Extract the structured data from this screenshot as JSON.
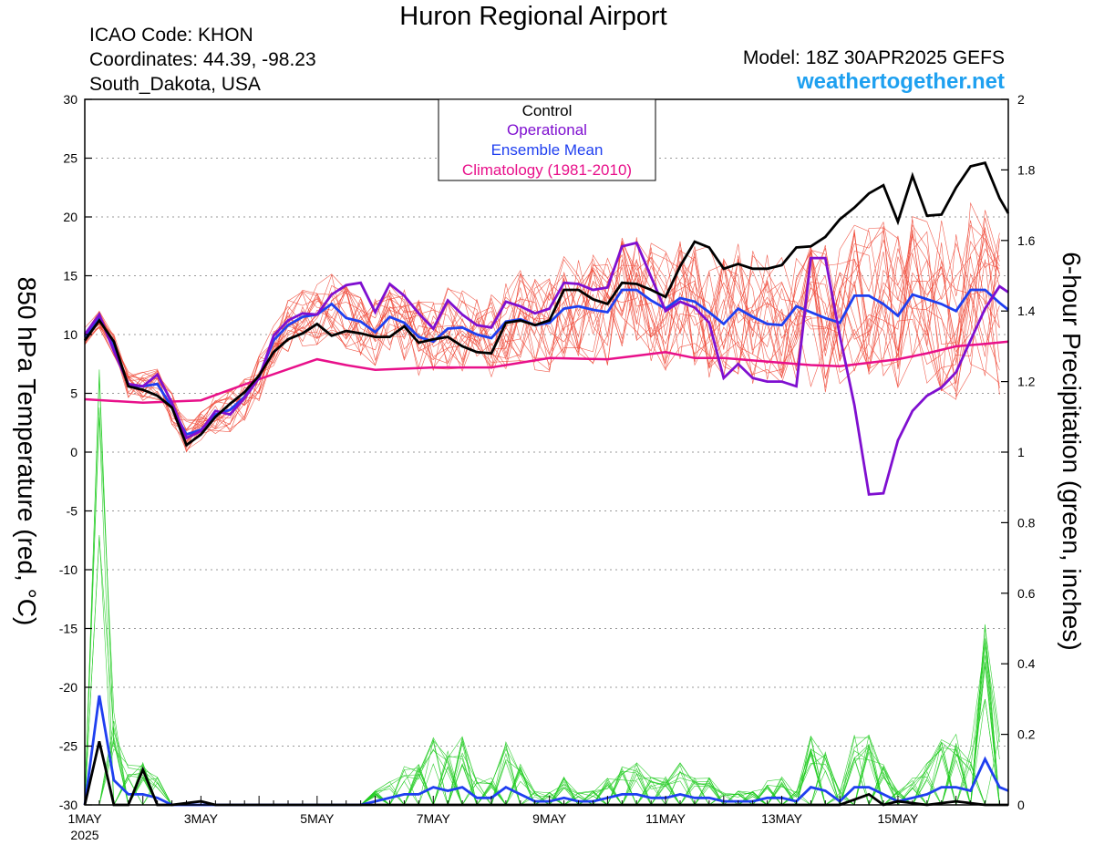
{
  "header": {
    "title": "Huron Regional Airport",
    "icao": "ICAO Code: KHON",
    "coordinates": "Coordinates: 44.39, -98.23",
    "region": "South_Dakota, USA",
    "model": "Model: 18Z 30APR2025 GEFS",
    "site": "weathertogether.net"
  },
  "colors": {
    "control": "#000000",
    "operational": "#7f0fd0",
    "ensemble_mean": "#1f3ff0",
    "climatology": "#e8108a",
    "members_temp": "#f04a3a",
    "members_precip": "#22cc22",
    "site": "#1ea0f0"
  },
  "chart_data": {
    "type": "line",
    "x_unit": "day of May 2025 (fractional, 6-hour steps)",
    "x_range": [
      1,
      16.9
    ],
    "x_ticks": [
      {
        "x": 1,
        "label": "1MAY",
        "sub": "2025"
      },
      {
        "x": 3,
        "label": "3MAY"
      },
      {
        "x": 5,
        "label": "5MAY"
      },
      {
        "x": 7,
        "label": "7MAY"
      },
      {
        "x": 9,
        "label": "9MAY"
      },
      {
        "x": 11,
        "label": "11MAY"
      },
      {
        "x": 13,
        "label": "13MAY"
      },
      {
        "x": 15,
        "label": "15MAY"
      }
    ],
    "y_left": {
      "label": "850 hPa Temperature (red, °C)",
      "range": [
        -30,
        30
      ],
      "ticks": [
        30,
        25,
        20,
        15,
        10,
        5,
        0,
        -5,
        -10,
        -15,
        -20,
        -25,
        -30
      ]
    },
    "y_right": {
      "label": "6-hour Precipitation (green, inches)",
      "range": [
        0,
        2
      ],
      "ticks": [
        "2",
        "1.8",
        "1.6",
        "1.4",
        "1.2",
        "1",
        "0.8",
        "0.6",
        "0.4",
        "0.2",
        "0"
      ]
    },
    "grid": "dotted horizontal",
    "legend": {
      "position": "top-center",
      "entries": [
        {
          "label": "Control",
          "color": "#000000"
        },
        {
          "label": "Operational",
          "color": "#7f0fd0"
        },
        {
          "label": "Ensemble Mean",
          "color": "#1f3ff0"
        },
        {
          "label": "Climatology (1981-2010)",
          "color": "#e8108a"
        }
      ]
    },
    "temperature": {
      "control": [
        [
          1,
          9.5
        ],
        [
          1.25,
          11.2
        ],
        [
          1.5,
          9.4
        ],
        [
          1.75,
          5.6
        ],
        [
          2,
          5.3
        ],
        [
          2.25,
          4.8
        ],
        [
          2.5,
          3.8
        ],
        [
          2.75,
          0.6
        ],
        [
          3,
          1.5
        ],
        [
          3.25,
          3.0
        ],
        [
          3.5,
          4.1
        ],
        [
          3.75,
          5.1
        ],
        [
          4,
          6.5
        ],
        [
          4.25,
          8.5
        ],
        [
          4.5,
          9.6
        ],
        [
          4.75,
          10.1
        ],
        [
          5,
          10.9
        ],
        [
          5.25,
          9.9
        ],
        [
          5.5,
          10.3
        ],
        [
          5.75,
          10.1
        ],
        [
          6,
          9.8
        ],
        [
          6.25,
          9.8
        ],
        [
          6.5,
          10.7
        ],
        [
          6.75,
          9.3
        ],
        [
          7,
          9.6
        ],
        [
          7.25,
          9.8
        ],
        [
          7.5,
          9.0
        ],
        [
          7.75,
          8.5
        ],
        [
          8,
          8.4
        ],
        [
          8.25,
          11.0
        ],
        [
          8.5,
          11.2
        ],
        [
          8.75,
          10.8
        ],
        [
          9,
          11.2
        ],
        [
          9.25,
          13.8
        ],
        [
          9.5,
          13.8
        ],
        [
          9.75,
          13.0
        ],
        [
          10,
          12.6
        ],
        [
          10.25,
          14.4
        ],
        [
          10.5,
          14.3
        ],
        [
          10.75,
          13.8
        ],
        [
          11,
          13.2
        ],
        [
          11.25,
          15.8
        ],
        [
          11.5,
          17.9
        ],
        [
          11.75,
          17.4
        ],
        [
          12,
          15.6
        ],
        [
          12.25,
          16.0
        ],
        [
          12.5,
          15.6
        ],
        [
          12.75,
          15.6
        ],
        [
          13,
          15.9
        ],
        [
          13.25,
          17.4
        ],
        [
          13.5,
          17.5
        ],
        [
          13.75,
          18.3
        ],
        [
          14,
          19.8
        ],
        [
          14.25,
          20.8
        ],
        [
          14.5,
          22.0
        ],
        [
          14.75,
          22.7
        ],
        [
          15,
          19.6
        ],
        [
          15.25,
          23.5
        ],
        [
          15.5,
          20.1
        ],
        [
          15.75,
          20.2
        ],
        [
          16,
          22.5
        ],
        [
          16.25,
          24.3
        ],
        [
          16.5,
          24.6
        ],
        [
          16.75,
          21.6
        ],
        [
          16.9,
          20.3
        ]
      ],
      "operational": [
        [
          1,
          10.0
        ],
        [
          1.25,
          11.7
        ],
        [
          1.5,
          8.6
        ],
        [
          1.75,
          5.8
        ],
        [
          2,
          5.6
        ],
        [
          2.25,
          6.6
        ],
        [
          2.5,
          4.2
        ],
        [
          2.75,
          1.2
        ],
        [
          3,
          1.8
        ],
        [
          3.25,
          3.5
        ],
        [
          3.5,
          3.2
        ],
        [
          3.75,
          4.6
        ],
        [
          4,
          6.3
        ],
        [
          4.25,
          9.9
        ],
        [
          4.5,
          11.2
        ],
        [
          4.75,
          11.8
        ],
        [
          5,
          11.7
        ],
        [
          5.25,
          13.4
        ],
        [
          5.5,
          14.2
        ],
        [
          5.75,
          14.4
        ],
        [
          6,
          11.9
        ],
        [
          6.25,
          14.3
        ],
        [
          6.5,
          13.3
        ],
        [
          6.75,
          11.8
        ],
        [
          7,
          10.5
        ],
        [
          7.25,
          12.9
        ],
        [
          7.5,
          11.7
        ],
        [
          7.75,
          10.8
        ],
        [
          8,
          10.6
        ],
        [
          8.25,
          12.8
        ],
        [
          8.5,
          12.4
        ],
        [
          8.75,
          11.8
        ],
        [
          9,
          12.2
        ],
        [
          9.25,
          14.4
        ],
        [
          9.5,
          14.3
        ],
        [
          9.75,
          13.8
        ],
        [
          10,
          14.0
        ],
        [
          10.25,
          17.5
        ],
        [
          10.5,
          17.8
        ],
        [
          10.75,
          14.9
        ],
        [
          11,
          12.0
        ],
        [
          11.25,
          12.8
        ],
        [
          11.5,
          12.3
        ],
        [
          11.75,
          11.0
        ],
        [
          12,
          6.3
        ],
        [
          12.25,
          7.5
        ],
        [
          12.5,
          6.3
        ],
        [
          12.75,
          6.0
        ],
        [
          13,
          6.0
        ],
        [
          13.25,
          5.6
        ],
        [
          13.5,
          16.5
        ],
        [
          13.75,
          16.5
        ],
        [
          14,
          9.9
        ],
        [
          14.25,
          4.0
        ],
        [
          14.5,
          -3.6
        ],
        [
          14.75,
          -3.5
        ],
        [
          15,
          1.0
        ],
        [
          15.25,
          3.5
        ],
        [
          15.5,
          4.8
        ],
        [
          15.75,
          5.5
        ],
        [
          16,
          6.8
        ],
        [
          16.25,
          9.5
        ],
        [
          16.5,
          12.2
        ],
        [
          16.75,
          14.1
        ],
        [
          16.9,
          13.6
        ]
      ],
      "ensemble_mean": [
        [
          1,
          9.8
        ],
        [
          1.25,
          11.4
        ],
        [
          1.5,
          9.0
        ],
        [
          1.75,
          5.7
        ],
        [
          2,
          5.6
        ],
        [
          2.25,
          5.8
        ],
        [
          2.5,
          3.8
        ],
        [
          2.75,
          1.5
        ],
        [
          3,
          1.9
        ],
        [
          3.25,
          3.2
        ],
        [
          3.5,
          3.6
        ],
        [
          3.75,
          4.7
        ],
        [
          4,
          6.4
        ],
        [
          4.25,
          9.5
        ],
        [
          4.5,
          10.8
        ],
        [
          4.75,
          11.5
        ],
        [
          5,
          11.7
        ],
        [
          5.25,
          12.6
        ],
        [
          5.5,
          11.4
        ],
        [
          5.75,
          11.1
        ],
        [
          6,
          10.2
        ],
        [
          6.25,
          11.5
        ],
        [
          6.5,
          11.0
        ],
        [
          6.75,
          9.8
        ],
        [
          7,
          9.4
        ],
        [
          7.25,
          10.5
        ],
        [
          7.5,
          10.6
        ],
        [
          7.75,
          10.0
        ],
        [
          8,
          9.7
        ],
        [
          8.25,
          11.1
        ],
        [
          8.5,
          11.3
        ],
        [
          8.75,
          10.8
        ],
        [
          9,
          11.0
        ],
        [
          9.25,
          12.2
        ],
        [
          9.5,
          12.4
        ],
        [
          9.75,
          12.1
        ],
        [
          10,
          11.9
        ],
        [
          10.25,
          13.8
        ],
        [
          10.5,
          13.8
        ],
        [
          10.75,
          12.9
        ],
        [
          11,
          12.2
        ],
        [
          11.25,
          13.1
        ],
        [
          11.5,
          12.8
        ],
        [
          11.75,
          11.9
        ],
        [
          12,
          10.9
        ],
        [
          12.25,
          12.2
        ],
        [
          12.5,
          11.5
        ],
        [
          12.75,
          10.9
        ],
        [
          13,
          10.8
        ],
        [
          13.25,
          12.4
        ],
        [
          13.5,
          11.9
        ],
        [
          13.75,
          11.4
        ],
        [
          14,
          11.0
        ],
        [
          14.25,
          13.3
        ],
        [
          14.5,
          13.3
        ],
        [
          14.75,
          12.6
        ],
        [
          15,
          11.6
        ],
        [
          15.25,
          13.4
        ],
        [
          15.5,
          13.0
        ],
        [
          15.75,
          12.6
        ],
        [
          16,
          12.0
        ],
        [
          16.25,
          13.8
        ],
        [
          16.5,
          13.8
        ],
        [
          16.75,
          12.7
        ],
        [
          16.9,
          12.1
        ]
      ],
      "climatology": [
        [
          1,
          4.5
        ],
        [
          2,
          4.2
        ],
        [
          3,
          4.4
        ],
        [
          4,
          6.2
        ],
        [
          5,
          7.9
        ],
        [
          5.5,
          7.4
        ],
        [
          6,
          7.0
        ],
        [
          7,
          7.2
        ],
        [
          8,
          7.2
        ],
        [
          9,
          8.0
        ],
        [
          10,
          7.9
        ],
        [
          10.5,
          8.2
        ],
        [
          11,
          8.5
        ],
        [
          11.5,
          8.0
        ],
        [
          12,
          8.0
        ],
        [
          12.5,
          7.8
        ],
        [
          13,
          7.6
        ],
        [
          13.5,
          7.4
        ],
        [
          14,
          7.3
        ],
        [
          14.5,
          7.6
        ],
        [
          15,
          7.9
        ],
        [
          15.5,
          8.4
        ],
        [
          16,
          9.0
        ],
        [
          16.5,
          9.2
        ],
        [
          16.9,
          9.4
        ]
      ]
    },
    "precipitation": {
      "control": [
        [
          1,
          0
        ],
        [
          1.25,
          0.18
        ],
        [
          1.5,
          0
        ],
        [
          1.75,
          0
        ],
        [
          2,
          0.1
        ],
        [
          2.25,
          0
        ],
        [
          2.5,
          0
        ],
        [
          3,
          0.01
        ],
        [
          3.25,
          0
        ],
        [
          5,
          0
        ],
        [
          9,
          0
        ],
        [
          14,
          0
        ],
        [
          14.5,
          0.03
        ],
        [
          14.75,
          0
        ],
        [
          15,
          0.01
        ],
        [
          15.5,
          0
        ],
        [
          16,
          0.01
        ],
        [
          16.5,
          0
        ],
        [
          16.9,
          0
        ]
      ],
      "ensemble_mean": [
        [
          1,
          0
        ],
        [
          1.25,
          0.31
        ],
        [
          1.5,
          0.07
        ],
        [
          1.75,
          0.03
        ],
        [
          2,
          0.03
        ],
        [
          2.25,
          0.02
        ],
        [
          2.5,
          0
        ],
        [
          3,
          0
        ],
        [
          5,
          0
        ],
        [
          5.75,
          0
        ],
        [
          6,
          0.01
        ],
        [
          6.5,
          0.03
        ],
        [
          6.75,
          0.03
        ],
        [
          7,
          0.05
        ],
        [
          7.25,
          0.04
        ],
        [
          7.5,
          0.05
        ],
        [
          7.75,
          0.02
        ],
        [
          8,
          0.02
        ],
        [
          8.25,
          0.05
        ],
        [
          8.5,
          0.03
        ],
        [
          8.75,
          0.01
        ],
        [
          9,
          0.01
        ],
        [
          9.25,
          0.02
        ],
        [
          9.5,
          0.01
        ],
        [
          9.75,
          0.01
        ],
        [
          10,
          0.02
        ],
        [
          10.25,
          0.03
        ],
        [
          10.5,
          0.03
        ],
        [
          10.75,
          0.02
        ],
        [
          11,
          0.02
        ],
        [
          11.25,
          0.03
        ],
        [
          11.5,
          0.02
        ],
        [
          11.75,
          0.02
        ],
        [
          12,
          0.01
        ],
        [
          12.5,
          0.01
        ],
        [
          12.75,
          0.02
        ],
        [
          13,
          0.02
        ],
        [
          13.25,
          0.01
        ],
        [
          13.5,
          0.05
        ],
        [
          13.75,
          0.04
        ],
        [
          14,
          0.01
        ],
        [
          14.25,
          0.05
        ],
        [
          14.5,
          0.05
        ],
        [
          14.75,
          0.03
        ],
        [
          15,
          0.01
        ],
        [
          15.25,
          0.02
        ],
        [
          15.5,
          0.03
        ],
        [
          15.75,
          0.05
        ],
        [
          16,
          0.05
        ],
        [
          16.25,
          0.04
        ],
        [
          16.5,
          0.13
        ],
        [
          16.75,
          0.05
        ],
        [
          16.9,
          0.04
        ]
      ]
    }
  }
}
